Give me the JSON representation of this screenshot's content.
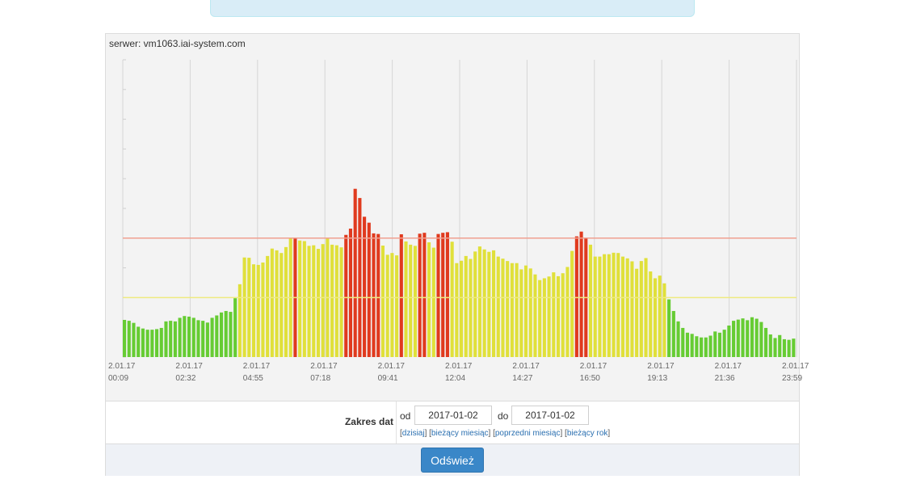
{
  "server": {
    "label": "serwer: vm1063.iai-system.com"
  },
  "chart_data": {
    "type": "bar",
    "x_ticks": [
      {
        "date": "2.01.17",
        "time": "00:09"
      },
      {
        "date": "2.01.17",
        "time": "02:32"
      },
      {
        "date": "2.01.17",
        "time": "04:55"
      },
      {
        "date": "2.01.17",
        "time": "07:18"
      },
      {
        "date": "2.01.17",
        "time": "09:41"
      },
      {
        "date": "2.01.17",
        "time": "12:04"
      },
      {
        "date": "2.01.17",
        "time": "14:27"
      },
      {
        "date": "2.01.17",
        "time": "16:50"
      },
      {
        "date": "2.01.17",
        "time": "19:13"
      },
      {
        "date": "2.01.17",
        "time": "21:36"
      },
      {
        "date": "2.01.17",
        "time": "23:59"
      }
    ],
    "values": [
      12.5,
      12.2,
      11.5,
      10.2,
      9.6,
      9.2,
      9.2,
      9.4,
      9.8,
      12,
      12.2,
      12,
      13.2,
      13.8,
      13.6,
      13.2,
      12.4,
      12.2,
      11.6,
      13.2,
      14,
      15,
      15.5,
      15.2,
      19.8,
      24.5,
      33.5,
      33.4,
      31.2,
      31,
      31.8,
      34,
      36.5,
      35.9,
      35,
      37,
      40,
      40.2,
      39.2,
      39,
      37.4,
      37.6,
      36.4,
      38,
      39.8,
      37.8,
      37.6,
      36.9,
      41.1,
      43.2,
      56.6,
      53.5,
      47.2,
      45.2,
      41.6,
      41.4,
      37.5,
      34.4,
      35,
      34.2,
      41.3,
      38.9,
      37.8,
      37.4,
      41.5,
      41.8,
      38.6,
      36.8,
      41.4,
      41.8,
      42,
      38.8,
      31.6,
      32.4,
      34,
      33,
      35.5,
      37.2,
      36.2,
      35.4,
      35.9,
      33.8,
      33.1,
      32.3,
      31.6,
      31.6,
      29.5,
      30.8,
      29.8,
      27.8,
      25.9,
      26.5,
      27.1,
      28.5,
      27.2,
      28.2,
      30.3,
      35.7,
      40.6,
      42.2,
      40.2,
      37.8,
      33.8,
      33.8,
      34.6,
      34.6,
      35.1,
      35,
      33.8,
      33.2,
      32.2,
      29.7,
      32.3,
      33.3,
      28.8,
      26.5,
      27.4,
      24.8,
      19.4,
      15.5,
      12,
      9.8,
      8.2,
      7.8,
      7,
      6.6,
      6.6,
      7.2,
      8.6,
      8.2,
      9.2,
      10.6,
      12.2,
      12.6,
      13,
      12.4,
      13.4,
      12.9,
      11.8,
      9.8,
      7.6,
      6.4,
      7.4,
      6,
      5.8,
      6.2
    ],
    "y_range": [
      0,
      100
    ],
    "thresholds": [
      {
        "value": 40,
        "color": "#f0a090"
      },
      {
        "value": 20,
        "color": "#eeea80"
      }
    ],
    "colors": {
      "green": "#66cc33",
      "yellow": "#e0e03a",
      "red": "#e03a1e"
    },
    "grid": true
  },
  "form": {
    "range_label": "Zakres dat",
    "from_label": "od",
    "to_label": "do",
    "from_value": "2017-01-02",
    "to_value": "2017-01-02",
    "links": {
      "open": "[",
      "today": "dzisiaj",
      "sep1": "] [",
      "current_month": "bieżący miesiąc",
      "sep2": "] [",
      "prev_month": "poprzedni miesiąc",
      "sep3": "] [",
      "current_year": "bieżący rok",
      "close": "]"
    }
  },
  "actions": {
    "refresh_label": "Odśwież"
  }
}
